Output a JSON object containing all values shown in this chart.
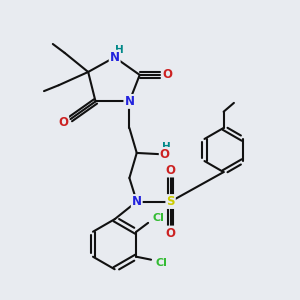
{
  "bg_color": "#e8ebf0",
  "bond_color": "#111111",
  "N_color": "#2222dd",
  "O_color": "#cc2222",
  "S_color": "#cccc00",
  "Cl_color": "#33bb33",
  "H_color": "#008888",
  "line_width": 1.5,
  "font_size": 8.5,
  "figsize": [
    3.0,
    3.0
  ],
  "dpi": 100,
  "xlim": [
    0,
    10
  ],
  "ylim": [
    0,
    10
  ]
}
